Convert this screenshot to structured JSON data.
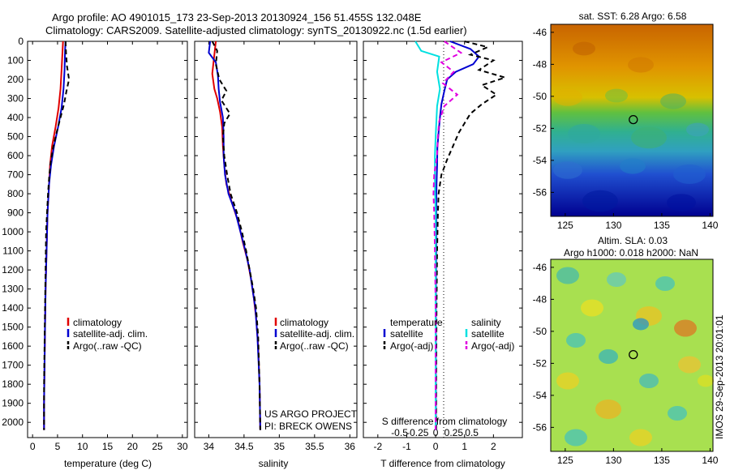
{
  "header": {
    "line1": "Argo profile: AO 4901015_173 23-Sep-2013 20130924_156 51.455S 132.048E",
    "line2": "Climatology: CARS2009. Satellite-adjusted climatology: synTS_20130922.nc (1.5d earlier)"
  },
  "colors": {
    "climatology": "#e00000",
    "satellite": "#0000d0",
    "argo": "#000000",
    "satellite_s": "#00e0e0",
    "argo_s": "#e000e0"
  },
  "chart_data": [
    {
      "type": "line",
      "id": "temperature",
      "xlabel": "temperature (deg C)",
      "xlim": [
        -1,
        31
      ],
      "xticks": [
        0,
        5,
        10,
        15,
        20,
        25,
        30
      ],
      "ylim": [
        2080,
        0
      ],
      "yticks": [
        0,
        100,
        200,
        300,
        400,
        500,
        600,
        700,
        800,
        900,
        1000,
        1100,
        1200,
        1300,
        1400,
        1500,
        1600,
        1700,
        1800,
        1900,
        2000
      ],
      "legend": [
        "climatology",
        "satellite-adj. clim.",
        "Argo(..raw -QC)"
      ],
      "series": [
        {
          "name": "climatology",
          "style": "climatology",
          "points": [
            [
              6.1,
              0
            ],
            [
              6.0,
              50
            ],
            [
              5.8,
              150
            ],
            [
              5.6,
              250
            ],
            [
              5.2,
              350
            ],
            [
              4.6,
              450
            ],
            [
              3.9,
              550
            ],
            [
              3.5,
              650
            ],
            [
              3.3,
              750
            ],
            [
              3.0,
              900
            ],
            [
              2.8,
              1100
            ],
            [
              2.6,
              1300
            ],
            [
              2.5,
              1500
            ],
            [
              2.4,
              1700
            ],
            [
              2.3,
              1900
            ],
            [
              2.3,
              2040
            ]
          ]
        },
        {
          "name": "satellite-adj. clim.",
          "style": "satellite",
          "points": [
            [
              6.6,
              0
            ],
            [
              6.5,
              50
            ],
            [
              6.4,
              150
            ],
            [
              6.2,
              250
            ],
            [
              5.8,
              350
            ],
            [
              5.1,
              450
            ],
            [
              4.3,
              550
            ],
            [
              3.7,
              650
            ],
            [
              3.3,
              750
            ],
            [
              3.0,
              900
            ],
            [
              2.8,
              1100
            ],
            [
              2.6,
              1300
            ],
            [
              2.5,
              1500
            ],
            [
              2.4,
              1700
            ],
            [
              2.3,
              1900
            ],
            [
              2.3,
              2040
            ]
          ]
        },
        {
          "name": "Argo(..raw -QC)",
          "style": "argo",
          "points": [
            [
              6.6,
              0
            ],
            [
              6.7,
              60
            ],
            [
              6.9,
              130
            ],
            [
              7.3,
              200
            ],
            [
              6.8,
              260
            ],
            [
              6.3,
              330
            ],
            [
              5.6,
              400
            ],
            [
              4.8,
              480
            ],
            [
              4.1,
              560
            ],
            [
              3.6,
              640
            ],
            [
              3.3,
              720
            ],
            [
              3.1,
              800
            ],
            [
              2.9,
              900
            ],
            [
              2.7,
              1000
            ],
            [
              2.6,
              1200
            ],
            [
              2.5,
              1400
            ],
            [
              2.4,
              1600
            ],
            [
              2.3,
              1800
            ],
            [
              2.3,
              2040
            ]
          ]
        }
      ]
    },
    {
      "type": "line",
      "id": "salinity",
      "xlabel": "salinity",
      "xlim": [
        33.8,
        36.1
      ],
      "xticks": [
        34,
        34.5,
        35,
        35.5,
        36
      ],
      "ylim": [
        2080,
        0
      ],
      "legend": [
        "climatology",
        "satellite-adj. clim.",
        "Argo(..raw -QC)"
      ],
      "annotation": [
        "US ARGO PROJECT",
        "PI: BRECK OWENS"
      ],
      "series": [
        {
          "name": "climatology",
          "style": "climatology",
          "points": [
            [
              34.1,
              0
            ],
            [
              34.07,
              100
            ],
            [
              34.05,
              170
            ],
            [
              34.08,
              250
            ],
            [
              34.12,
              300
            ],
            [
              34.16,
              370
            ],
            [
              34.19,
              450
            ],
            [
              34.2,
              550
            ],
            [
              34.22,
              650
            ],
            [
              34.25,
              750
            ],
            [
              34.33,
              850
            ],
            [
              34.42,
              950
            ],
            [
              34.48,
              1050
            ],
            [
              34.55,
              1150
            ],
            [
              34.6,
              1250
            ],
            [
              34.64,
              1350
            ],
            [
              34.67,
              1450
            ],
            [
              34.7,
              1600
            ],
            [
              34.72,
              1800
            ],
            [
              34.73,
              2040
            ]
          ]
        },
        {
          "name": "satellite-adj. clim.",
          "style": "satellite",
          "points": [
            [
              34.02,
              0
            ],
            [
              34.0,
              60
            ],
            [
              34.1,
              110
            ],
            [
              34.13,
              180
            ],
            [
              34.14,
              250
            ],
            [
              34.16,
              320
            ],
            [
              34.2,
              400
            ],
            [
              34.21,
              500
            ],
            [
              34.21,
              600
            ],
            [
              34.23,
              700
            ],
            [
              34.28,
              800
            ],
            [
              34.38,
              900
            ],
            [
              34.45,
              1000
            ],
            [
              34.52,
              1100
            ],
            [
              34.58,
              1200
            ],
            [
              34.62,
              1300
            ],
            [
              34.66,
              1400
            ],
            [
              34.69,
              1550
            ],
            [
              34.72,
              1800
            ],
            [
              34.73,
              2040
            ]
          ]
        },
        {
          "name": "Argo(..raw -QC)",
          "style": "argo",
          "points": [
            [
              34.05,
              0
            ],
            [
              34.12,
              50
            ],
            [
              34.1,
              120
            ],
            [
              34.15,
              200
            ],
            [
              34.25,
              260
            ],
            [
              34.18,
              310
            ],
            [
              34.3,
              380
            ],
            [
              34.22,
              430
            ],
            [
              34.2,
              500
            ],
            [
              34.22,
              600
            ],
            [
              34.26,
              700
            ],
            [
              34.31,
              800
            ],
            [
              34.4,
              900
            ],
            [
              34.47,
              1000
            ],
            [
              34.53,
              1100
            ],
            [
              34.58,
              1200
            ],
            [
              34.63,
              1300
            ],
            [
              34.67,
              1400
            ],
            [
              34.7,
              1550
            ],
            [
              34.72,
              1800
            ],
            [
              34.73,
              2040
            ]
          ]
        }
      ]
    },
    {
      "type": "line",
      "id": "difference",
      "xlabel": "T difference from climatology",
      "toplabel": "S difference from climatology",
      "xlim": [
        -2.5,
        3
      ],
      "xticks": [
        -2,
        -1,
        0,
        1,
        2
      ],
      "sticks": [
        -0.5,
        -0.25,
        0,
        0.25,
        0.5
      ],
      "sticklabels": [
        "-0.5",
        "-0.25",
        "0",
        "0.25",
        "0.5"
      ],
      "ylim": [
        2080,
        0
      ],
      "legend_t": [
        "temperature",
        "satellite",
        "Argo(-adj)"
      ],
      "legend_s": [
        "salinity",
        "satellite",
        "Argo(-adj)"
      ],
      "series": [
        {
          "name": "T satellite",
          "style": "satellite",
          "points": [
            [
              0.5,
              0
            ],
            [
              1.2,
              40
            ],
            [
              1.5,
              80
            ],
            [
              1.3,
              120
            ],
            [
              0.7,
              160
            ],
            [
              0.4,
              200
            ],
            [
              0.3,
              260
            ],
            [
              0.2,
              330
            ],
            [
              0.15,
              400
            ],
            [
              0.1,
              480
            ],
            [
              0.06,
              560
            ],
            [
              0.05,
              650
            ],
            [
              0.03,
              750
            ],
            [
              0.02,
              900
            ],
            [
              0.02,
              1100
            ],
            [
              0.01,
              1400
            ],
            [
              0.01,
              1800
            ],
            [
              0.01,
              2040
            ]
          ]
        },
        {
          "name": "T Argo(-adj)",
          "style": "argo",
          "points": [
            [
              1.0,
              0
            ],
            [
              1.8,
              30
            ],
            [
              1.2,
              70
            ],
            [
              2.0,
              100
            ],
            [
              1.5,
              150
            ],
            [
              2.4,
              190
            ],
            [
              1.6,
              230
            ],
            [
              2.1,
              280
            ],
            [
              1.6,
              330
            ],
            [
              1.2,
              380
            ],
            [
              1.0,
              430
            ],
            [
              0.8,
              480
            ],
            [
              0.6,
              550
            ],
            [
              0.4,
              620
            ],
            [
              0.2,
              700
            ],
            [
              0.1,
              800
            ],
            [
              0.08,
              900
            ],
            [
              0.05,
              1100
            ],
            [
              0.03,
              1400
            ],
            [
              0.02,
              1800
            ],
            [
              0.02,
              2040
            ]
          ]
        },
        {
          "name": "S satellite",
          "style": "satellite_s",
          "sunits": true,
          "points": [
            [
              -0.28,
              0
            ],
            [
              -0.2,
              50
            ],
            [
              0.05,
              80
            ],
            [
              0.02,
              160
            ],
            [
              0.06,
              250
            ],
            [
              0.02,
              340
            ],
            [
              0.01,
              420
            ],
            [
              0.0,
              500
            ],
            [
              -0.01,
              600
            ],
            [
              -0.01,
              750
            ],
            [
              0.0,
              900
            ],
            [
              0.0,
              1100
            ],
            [
              0.0,
              1400
            ],
            [
              0.0,
              1800
            ],
            [
              0.0,
              2040
            ]
          ]
        },
        {
          "name": "S Argo(-adj)",
          "style": "argo_s",
          "sunits": true,
          "points": [
            [
              0.12,
              0
            ],
            [
              0.35,
              60
            ],
            [
              0.08,
              110
            ],
            [
              0.25,
              160
            ],
            [
              0.1,
              220
            ],
            [
              0.3,
              280
            ],
            [
              0.12,
              340
            ],
            [
              0.05,
              420
            ],
            [
              0.03,
              500
            ],
            [
              0.02,
              600
            ],
            [
              -0.02,
              700
            ],
            [
              -0.03,
              800
            ],
            [
              -0.02,
              900
            ],
            [
              -0.01,
              1100
            ],
            [
              0.0,
              1400
            ],
            [
              0.0,
              1800
            ],
            [
              0.0,
              2040
            ]
          ]
        }
      ]
    },
    {
      "type": "heatmap",
      "id": "sst_map",
      "title": "sat. SST: 6.28 Argo: 6.58",
      "xlim": [
        123.5,
        140.3
      ],
      "ylim": [
        -57.5,
        -45.5
      ],
      "xticks": [
        125,
        130,
        135,
        140
      ],
      "yticks": [
        -46,
        -48,
        -50,
        -52,
        -54,
        -56
      ],
      "marker": [
        132.048,
        -51.455
      ]
    },
    {
      "type": "heatmap",
      "id": "sla_map",
      "title": "Altim. SLA: 0.03",
      "subtitle": "Argo h1000: 0.018 h2000: NaN",
      "xlim": [
        123.5,
        140.3
      ],
      "ylim": [
        -57.5,
        -45.5
      ],
      "xticks": [
        125,
        130,
        135,
        140
      ],
      "yticks": [
        -46,
        -48,
        -50,
        -52,
        -54,
        -56
      ],
      "marker": [
        132.048,
        -51.455
      ]
    }
  ],
  "watermark": "IMOS 29-Sep-2013 20:01:01"
}
